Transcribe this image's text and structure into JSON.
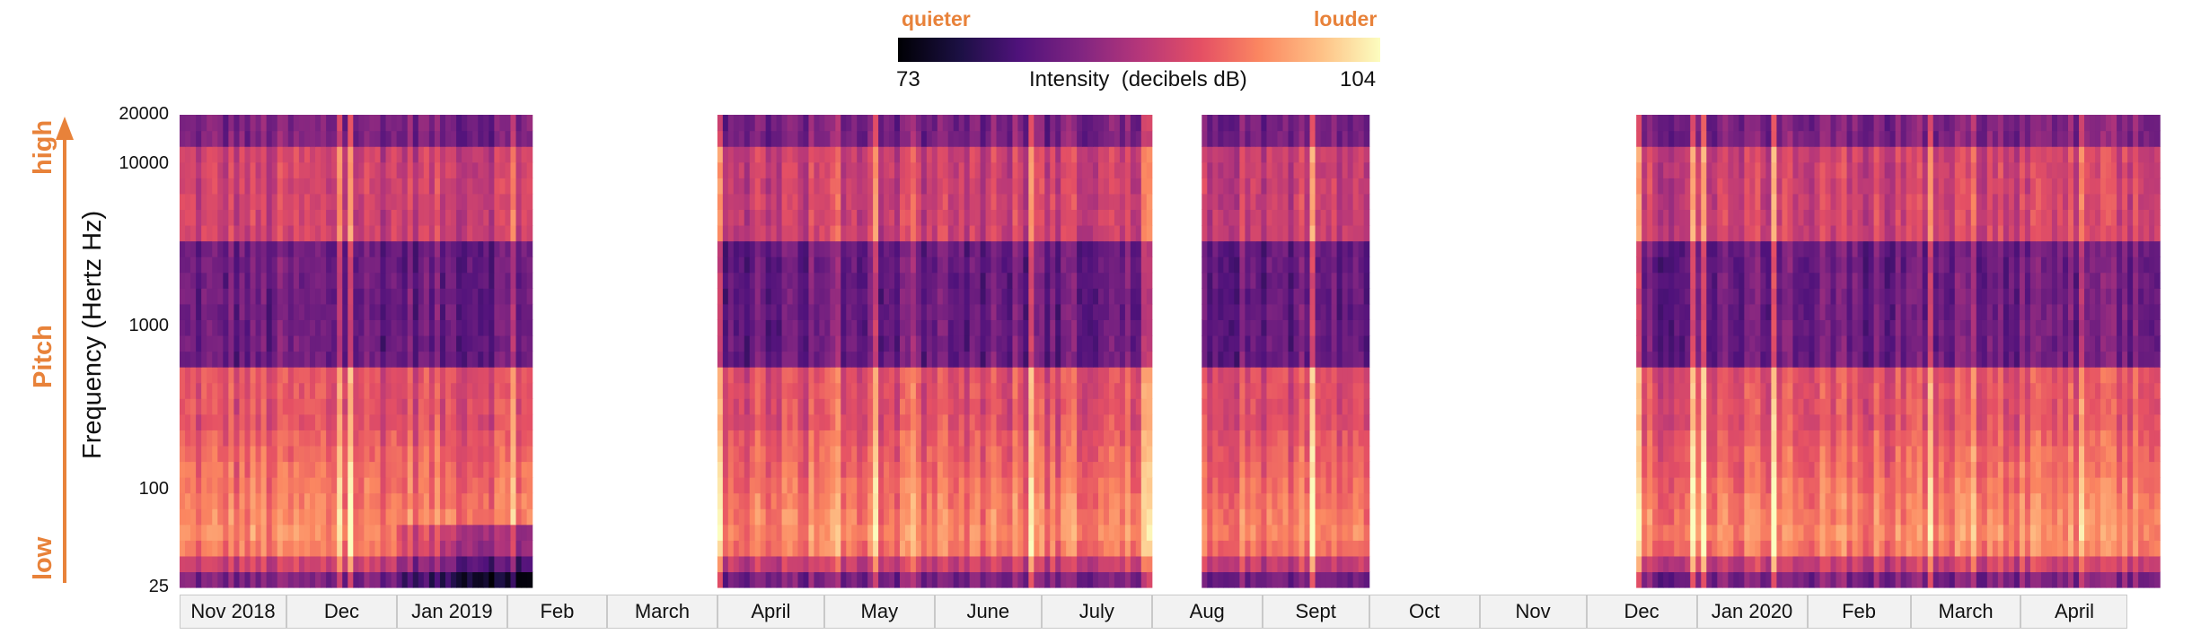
{
  "colorbar": {
    "low_text": "quieter",
    "high_text": "louder",
    "min_label": "73",
    "max_label": "104",
    "title": "Intensity  (decibels dB)",
    "vmin": 73,
    "vmax": 104,
    "colormap": "magma"
  },
  "side_labels": {
    "pitch": "Pitch",
    "high": "high",
    "low": "low"
  },
  "arrow_color": "#e8823a",
  "chart_data": {
    "type": "heatmap",
    "ylabel": "Frequency (Hertz Hz)",
    "y_scale": "log",
    "ylim": [
      25,
      20000
    ],
    "y_ticks": [
      "20000",
      "10000",
      "1000",
      "100",
      "25"
    ],
    "y_tick_values": [
      20000,
      10000,
      1000,
      100,
      25
    ],
    "x_categories": [
      "Nov 2018",
      "Dec",
      "Jan 2019",
      "Feb",
      "March",
      "April",
      "May",
      "June",
      "July",
      "Aug",
      "Sept",
      "Oct",
      "Nov",
      "Dec",
      "Jan 2020",
      "Feb",
      "March",
      "April"
    ],
    "recording_periods": [
      {
        "start": "2018-11-01",
        "end": "2019-02-08"
      },
      {
        "start": "2019-04-01",
        "end": "2019-08-01"
      },
      {
        "start": "2019-08-15",
        "end": "2019-10-01"
      },
      {
        "start": "2019-12-15",
        "end": "2020-05-10"
      }
    ],
    "legend": "colorbar top"
  }
}
